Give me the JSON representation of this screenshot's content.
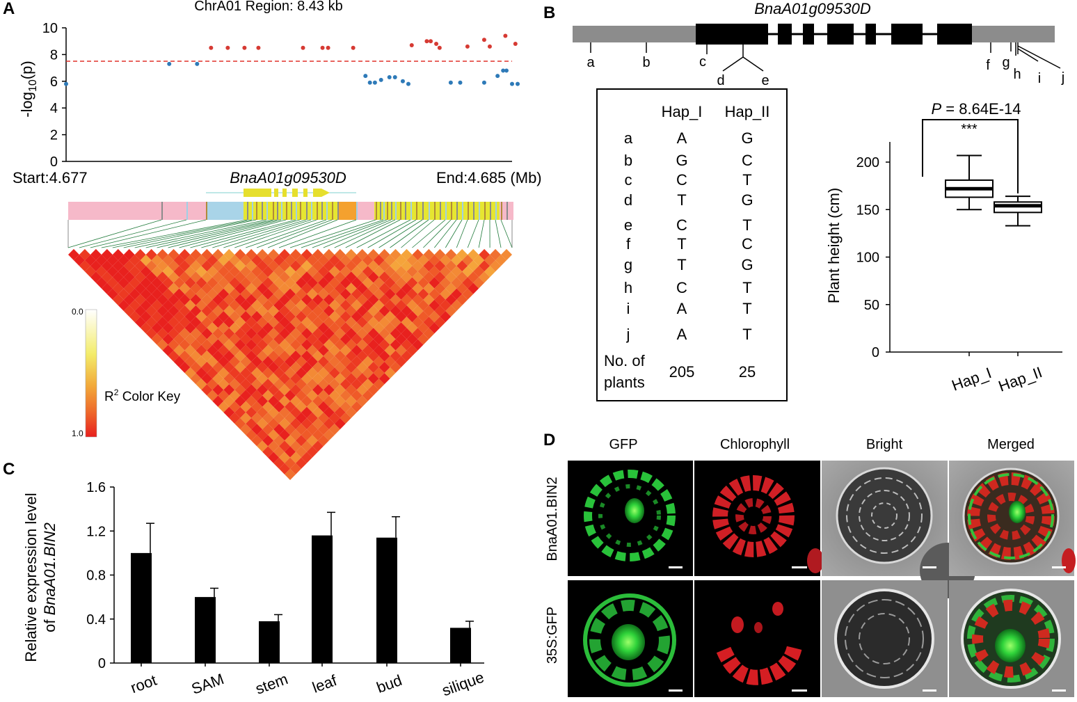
{
  "panels": {
    "a": "A",
    "b": "B",
    "c": "C",
    "d": "D"
  },
  "panel_a": {
    "title": "ChrA01 Region: 8.43 kb",
    "ylabel_prefix": "-log",
    "ylabel_sub": "10",
    "ylabel_suffix": "(p)",
    "start_label": "Start:4.677",
    "end_label": "End:4.685 (Mb)",
    "gene": "BnaA01g09530D",
    "color_key_label": "R",
    "color_key_sup": "2",
    "color_key_suffix": " Color Key",
    "color_key_min": "0.0",
    "color_key_max": "1.0"
  },
  "panel_b": {
    "gene": "BnaA01g09530D",
    "variant_letters": [
      "a",
      "b",
      "c",
      "d",
      "e",
      "f",
      "g",
      "h",
      "i",
      "j"
    ],
    "hap_table": {
      "headers": [
        "Hap_I",
        "Hap_II"
      ],
      "rows": [
        {
          "site": "a",
          "hap1": "A",
          "hap2": "G"
        },
        {
          "site": "b",
          "hap1": "G",
          "hap2": "C"
        },
        {
          "site": "c",
          "hap1": "C",
          "hap2": "T"
        },
        {
          "site": "d",
          "hap1": "T",
          "hap2": "G"
        },
        {
          "site": "e",
          "hap1": "C",
          "hap2": "T"
        },
        {
          "site": "f",
          "hap1": "T",
          "hap2": "C"
        },
        {
          "site": "g",
          "hap1": "T",
          "hap2": "G"
        },
        {
          "site": "h",
          "hap1": "C",
          "hap2": "T"
        },
        {
          "site": "i",
          "hap1": "A",
          "hap2": "T"
        },
        {
          "site": "j",
          "hap1": "A",
          "hap2": "T"
        }
      ],
      "count_label_line1": "No. of",
      "count_label_line2": "plants",
      "counts": [
        "205",
        "25"
      ]
    },
    "pvalue_p": "P",
    "pvalue_text": " = 8.64E-14",
    "signif": "***"
  },
  "panel_d": {
    "columns": [
      "GFP",
      "Chlorophyll",
      "Bright",
      "Merged"
    ],
    "rows": [
      "BnaA01.BIN2",
      "35S:GFP"
    ]
  },
  "chart_data": [
    {
      "type": "scatter",
      "panel": "A",
      "title": "ChrA01 Region: 8.43 kb",
      "xlabel": "",
      "ylabel": "-log10(p)",
      "xlim": [
        4.677,
        4.685
      ],
      "ylim": [
        0,
        10
      ],
      "yticks": [
        0,
        2,
        4,
        6,
        8,
        10
      ],
      "threshold": 7.5,
      "threshold_color": "#e0302a",
      "colors": {
        "above": "#d63a33",
        "below": "#2e7ab8"
      },
      "points": [
        [
          4.677,
          5.8
        ],
        [
          4.67885,
          7.3
        ],
        [
          4.67935,
          7.3
        ],
        [
          4.6796,
          8.5
        ],
        [
          4.6799,
          8.5
        ],
        [
          4.6802,
          8.5
        ],
        [
          4.68045,
          8.5
        ],
        [
          4.68125,
          8.5
        ],
        [
          4.6816,
          8.5
        ],
        [
          4.6817,
          8.5
        ],
        [
          4.68215,
          8.5
        ],
        [
          4.68237,
          6.4
        ],
        [
          4.68245,
          5.9
        ],
        [
          4.68254,
          5.9
        ],
        [
          4.68265,
          6.1
        ],
        [
          4.6828,
          6.3
        ],
        [
          4.6829,
          6.3
        ],
        [
          4.68304,
          6.0
        ],
        [
          4.68314,
          5.8
        ],
        [
          4.6832,
          8.7
        ],
        [
          4.68347,
          9.0
        ],
        [
          4.68354,
          9.0
        ],
        [
          4.68364,
          8.8
        ],
        [
          4.6837,
          8.5
        ],
        [
          4.6839,
          5.9
        ],
        [
          4.68407,
          5.9
        ],
        [
          4.6842,
          8.6
        ],
        [
          4.6845,
          9.1
        ],
        [
          4.6846,
          8.6
        ],
        [
          4.6845,
          5.9
        ],
        [
          4.68474,
          6.4
        ],
        [
          4.68484,
          6.8
        ],
        [
          4.6849,
          6.8
        ],
        [
          4.68488,
          9.4
        ],
        [
          4.685,
          5.8
        ],
        [
          4.68506,
          8.8
        ],
        [
          4.6851,
          5.8
        ]
      ]
    },
    {
      "type": "box",
      "panel": "B",
      "xlabel": "",
      "ylabel": "Plant height (cm)",
      "ylim": [
        0,
        220
      ],
      "yticks": [
        0,
        50,
        100,
        150,
        200
      ],
      "categories": [
        "Hap_I",
        "Hap_II"
      ],
      "boxes": [
        {
          "name": "Hap_I",
          "min": 150,
          "q1": 163,
          "median": 172,
          "q3": 181,
          "max": 207
        },
        {
          "name": "Hap_II",
          "min": 133,
          "q1": 147,
          "median": 154,
          "q3": 158,
          "max": 164
        }
      ]
    },
    {
      "type": "bar",
      "panel": "C",
      "xlabel": "",
      "ylabel_line1": "Relative expression level",
      "ylabel_line2_prefix": "of ",
      "ylabel_line2_gene": "BnaA01.BIN2",
      "ylim": [
        0,
        1.6
      ],
      "yticks": [
        "0",
        "0.4",
        "0.8",
        "1.2",
        "1.6"
      ],
      "ytick_values": [
        0,
        0.4,
        0.8,
        1.2,
        1.6
      ],
      "categories": [
        "root",
        "SAM",
        "stem",
        "leaf",
        "bud",
        "silique"
      ],
      "values": [
        1.0,
        0.6,
        0.38,
        1.16,
        1.14,
        0.32
      ],
      "errors": [
        0.27,
        0.08,
        0.06,
        0.21,
        0.19,
        0.06
      ]
    }
  ]
}
